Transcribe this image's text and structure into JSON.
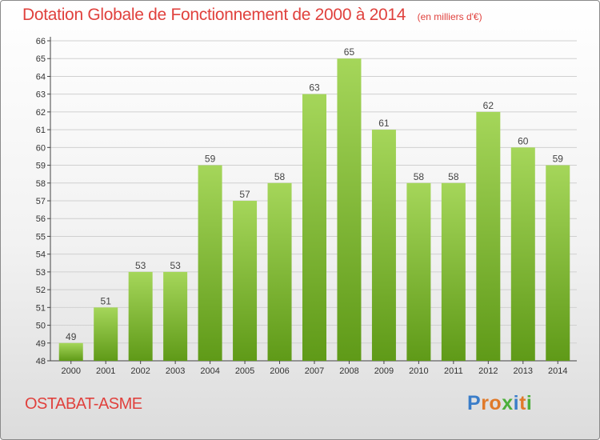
{
  "title": "Dotation Globale de Fonctionnement de 2000 à 2014",
  "unit": "(en milliers d'€)",
  "commune": "OSTABAT-ASME",
  "logo": {
    "letters": [
      "P",
      "r",
      "o",
      "x",
      "i",
      "t",
      "i"
    ],
    "colors": [
      "#3a7dc9",
      "#e07a2a",
      "#e07a2a",
      "#4caf3a",
      "#3a7dc9",
      "#e07a2a",
      "#4caf3a"
    ]
  },
  "colors": {
    "title": "#e0413d",
    "bar_top": "#a5d65a",
    "bar_bottom": "#5f9a18",
    "grid": "#d0d0d0"
  },
  "chart_data": {
    "type": "bar",
    "categories": [
      "2000",
      "2001",
      "2002",
      "2003",
      "2004",
      "2005",
      "2006",
      "2007",
      "2008",
      "2009",
      "2010",
      "2011",
      "2012",
      "2013",
      "2014"
    ],
    "values": [
      49,
      51,
      53,
      53,
      59,
      57,
      58,
      63,
      65,
      61,
      58,
      58,
      62,
      60,
      59
    ],
    "ylim": [
      48,
      66
    ],
    "yticks": [
      48,
      49,
      50,
      51,
      52,
      53,
      54,
      55,
      56,
      57,
      58,
      59,
      60,
      61,
      62,
      63,
      64,
      65,
      66
    ],
    "grid": true,
    "data_labels": true
  }
}
